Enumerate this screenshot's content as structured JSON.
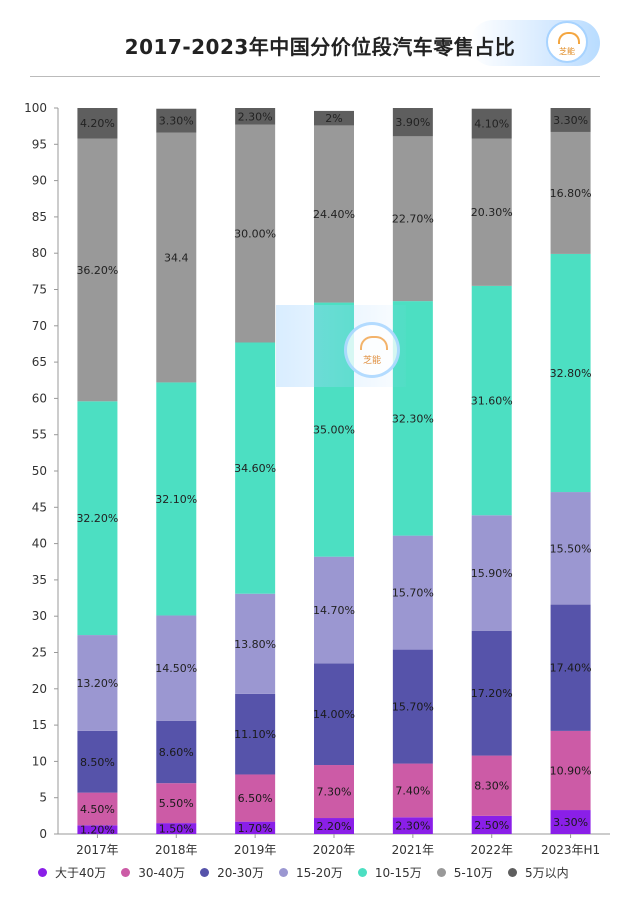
{
  "title": "2017-2023年中国分价位段汽车零售占比",
  "logo_text": "芝能",
  "watermark_text": "芝能",
  "chart_data": {
    "type": "bar",
    "stacked": true,
    "title": "2017-2023年中国分价位段汽车零售占比",
    "xlabel": "",
    "ylabel": "",
    "ylim": [
      0,
      100
    ],
    "yticks": [
      0,
      5,
      10,
      15,
      20,
      25,
      30,
      35,
      40,
      45,
      50,
      55,
      60,
      65,
      70,
      75,
      80,
      85,
      90,
      95,
      100
    ],
    "categories": [
      "2017年",
      "2018年",
      "2019年",
      "2020年",
      "2021年",
      "2022年",
      "2023年H1"
    ],
    "legend_position": "bottom",
    "grid": false,
    "series": [
      {
        "name": "大于40万",
        "color": "#8a1fe8",
        "values": [
          1.2,
          1.5,
          1.7,
          2.2,
          2.3,
          2.5,
          3.3
        ],
        "labels": [
          "1.20%",
          "1.50%",
          "1.70%",
          "2.20%",
          "2.30%",
          "2.50%",
          "3.30%"
        ]
      },
      {
        "name": "30-40万",
        "color": "#cc5ba6",
        "values": [
          4.5,
          5.5,
          6.5,
          7.3,
          7.4,
          8.3,
          10.9
        ],
        "labels": [
          "4.50%",
          "5.50%",
          "6.50%",
          "7.30%",
          "7.40%",
          "8.30%",
          "10.90%"
        ]
      },
      {
        "name": "20-30万",
        "color": "#5653aa",
        "values": [
          8.5,
          8.6,
          11.1,
          14.0,
          15.7,
          17.2,
          17.4
        ],
        "labels": [
          "8.50%",
          "8.60%",
          "11.10%",
          "14.00%",
          "15.70%",
          "17.20%",
          "17.40%"
        ]
      },
      {
        "name": "15-20万",
        "color": "#9b97d1",
        "values": [
          13.2,
          14.5,
          13.8,
          14.7,
          15.7,
          15.9,
          15.5
        ],
        "labels": [
          "13.20%",
          "14.50%",
          "13.80%",
          "14.70%",
          "15.70%",
          "15.90%",
          "15.50%"
        ]
      },
      {
        "name": "10-15万",
        "color": "#4cdfc2",
        "values": [
          32.2,
          32.1,
          34.6,
          35.0,
          32.3,
          31.6,
          32.8
        ],
        "labels": [
          "32.20%",
          "32.10%",
          "34.60%",
          "35.00%",
          "32.30%",
          "31.60%",
          "32.80%"
        ]
      },
      {
        "name": "5-10万",
        "color": "#999999",
        "values": [
          36.2,
          34.4,
          30.0,
          24.4,
          22.7,
          20.3,
          16.8
        ],
        "labels": [
          "36.20%",
          "34.4",
          "30.00%",
          "24.40%",
          "22.70%",
          "20.30%",
          "16.80%"
        ]
      },
      {
        "name": "5万以内",
        "color": "#5e5e5e",
        "values": [
          4.2,
          3.3,
          2.3,
          2.0,
          3.9,
          4.1,
          3.3
        ],
        "labels": [
          "4.20%",
          "3.30%",
          "2.30%",
          "2%",
          "3.90%",
          "4.10%",
          "3.30%"
        ]
      }
    ]
  }
}
